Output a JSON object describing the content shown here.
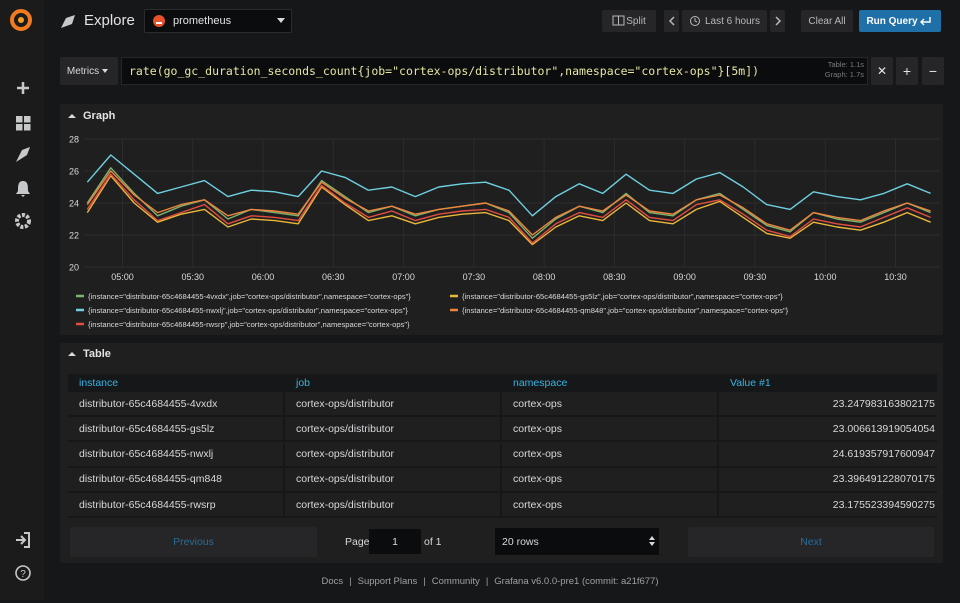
{
  "nav": {
    "title": "Explore",
    "datasource": "prometheus",
    "split": "Split",
    "time_range": "Last 6 hours",
    "clear": "Clear All",
    "run": "Run Query"
  },
  "query": {
    "button": "Metrics",
    "expr": "rate(go_gc_duration_seconds_count{job=\"cortex-ops/distributor\",namespace=\"cortex-ops\"}[5m])",
    "stats": [
      "Table: 1.1s",
      "Graph: 1.7s"
    ]
  },
  "graph_panel": {
    "title": "Graph"
  },
  "chart_data": {
    "type": "line",
    "x": [
      "04:45",
      "04:55",
      "05:05",
      "05:15",
      "05:25",
      "05:35",
      "05:45",
      "05:55",
      "06:05",
      "06:15",
      "06:25",
      "06:35",
      "06:45",
      "06:55",
      "07:05",
      "07:15",
      "07:25",
      "07:35",
      "07:45",
      "07:55",
      "08:05",
      "08:15",
      "08:25",
      "08:35",
      "08:45",
      "08:55",
      "09:05",
      "09:15",
      "09:25",
      "09:35",
      "09:45",
      "09:55",
      "10:05",
      "10:15",
      "10:25",
      "10:35",
      "10:45"
    ],
    "series": [
      {
        "name": "{instance=\"distributor-65c4684455-4vxdx\",job=\"cortex-ops/distributor\",namespace=\"cortex-ops\"}",
        "color": "#7eb26d",
        "values": [
          24.0,
          26.2,
          24.6,
          23.2,
          23.8,
          24.2,
          23.0,
          23.6,
          23.4,
          23.2,
          25.4,
          24.4,
          23.4,
          23.8,
          23.2,
          23.6,
          23.8,
          24.0,
          23.4,
          21.8,
          23.0,
          23.8,
          23.4,
          24.6,
          23.4,
          23.2,
          24.2,
          24.6,
          23.6,
          22.6,
          22.2,
          23.4,
          23.0,
          22.8,
          23.4,
          24.0,
          23.4
        ]
      },
      {
        "name": "{instance=\"distributor-65c4684455-gs5lz\",job=\"cortex-ops/distributor\",namespace=\"cortex-ops\"}",
        "color": "#eab839",
        "values": [
          23.4,
          25.7,
          24.0,
          22.8,
          23.3,
          23.6,
          22.5,
          23.0,
          22.9,
          22.7,
          25.0,
          23.9,
          22.9,
          23.2,
          22.7,
          23.1,
          23.3,
          23.4,
          22.9,
          21.4,
          22.5,
          23.2,
          22.9,
          24.0,
          22.9,
          22.7,
          23.6,
          24.1,
          23.1,
          22.1,
          21.8,
          22.8,
          22.5,
          22.3,
          22.8,
          23.4,
          22.8
        ]
      },
      {
        "name": "{instance=\"distributor-65c4684455-nwxlj\",job=\"cortex-ops/distributor\",namespace=\"cortex-ops\"}",
        "color": "#6ed0e0",
        "values": [
          25.3,
          27.0,
          25.8,
          24.6,
          25.0,
          25.4,
          24.4,
          24.8,
          24.7,
          24.4,
          26.0,
          25.6,
          24.8,
          25.0,
          24.4,
          25.0,
          25.2,
          25.3,
          24.8,
          23.2,
          24.4,
          25.2,
          24.6,
          25.8,
          24.8,
          24.6,
          25.5,
          25.9,
          25.0,
          23.9,
          23.6,
          24.7,
          24.4,
          24.2,
          24.6,
          25.2,
          24.6
        ]
      },
      {
        "name": "{instance=\"distributor-65c4684455-qm848\",job=\"cortex-ops/distributor\",namespace=\"cortex-ops\"}",
        "color": "#ef843c",
        "values": [
          23.9,
          26.0,
          24.5,
          23.4,
          23.9,
          24.2,
          23.2,
          23.6,
          23.5,
          23.3,
          25.3,
          24.3,
          23.5,
          23.8,
          23.3,
          23.6,
          23.8,
          24.0,
          23.5,
          22.0,
          23.1,
          23.8,
          23.5,
          24.5,
          23.5,
          23.3,
          24.2,
          24.5,
          23.7,
          22.7,
          22.3,
          23.4,
          23.1,
          22.9,
          23.5,
          24.0,
          23.5
        ]
      },
      {
        "name": "{instance=\"distributor-65c4684455-rwsrp\",job=\"cortex-ops/distributor\",namespace=\"cortex-ops\"}",
        "color": "#e24d42",
        "values": [
          23.6,
          25.8,
          24.2,
          22.9,
          23.4,
          23.9,
          22.7,
          23.2,
          23.1,
          22.9,
          25.1,
          24.0,
          23.1,
          23.5,
          22.9,
          23.3,
          23.5,
          23.6,
          23.1,
          21.5,
          22.7,
          23.4,
          23.1,
          24.2,
          23.1,
          22.9,
          23.9,
          24.2,
          23.3,
          22.3,
          21.9,
          23.0,
          22.7,
          22.5,
          23.1,
          23.7,
          23.1
        ]
      }
    ],
    "xlim": [
      "04:44",
      "10:49"
    ],
    "xticks": [
      "05:00",
      "05:30",
      "06:00",
      "06:30",
      "07:00",
      "07:30",
      "08:00",
      "08:30",
      "09:00",
      "09:30",
      "10:00",
      "10:30"
    ],
    "ylim": [
      20,
      28
    ],
    "yticks": [
      20,
      22,
      24,
      26,
      28
    ],
    "grid": true
  },
  "table": {
    "title": "Table",
    "columns": [
      "instance",
      "job",
      "namespace",
      "Value #1"
    ],
    "rows": [
      [
        "distributor-65c4684455-4vxdx",
        "cortex-ops/distributor",
        "cortex-ops",
        23.247983163802175
      ],
      [
        "distributor-65c4684455-gs5lz",
        "cortex-ops/distributor",
        "cortex-ops",
        23.006613919054054
      ],
      [
        "distributor-65c4684455-nwxlj",
        "cortex-ops/distributor",
        "cortex-ops",
        24.619357917600947
      ],
      [
        "distributor-65c4684455-qm848",
        "cortex-ops/distributor",
        "cortex-ops",
        23.396491228070175
      ],
      [
        "distributor-65c4684455-rwsrp",
        "cortex-ops/distributor",
        "cortex-ops",
        23.175523394590275
      ]
    ]
  },
  "pagination": {
    "previous": "Previous",
    "page_label": "Page",
    "page": 1,
    "of": "of 1",
    "rows": "20 rows",
    "next": "Next"
  },
  "footer": [
    "Docs",
    "Support Plans",
    "Community",
    "Grafana v6.0.0-pre1 (commit: a21f677)"
  ]
}
